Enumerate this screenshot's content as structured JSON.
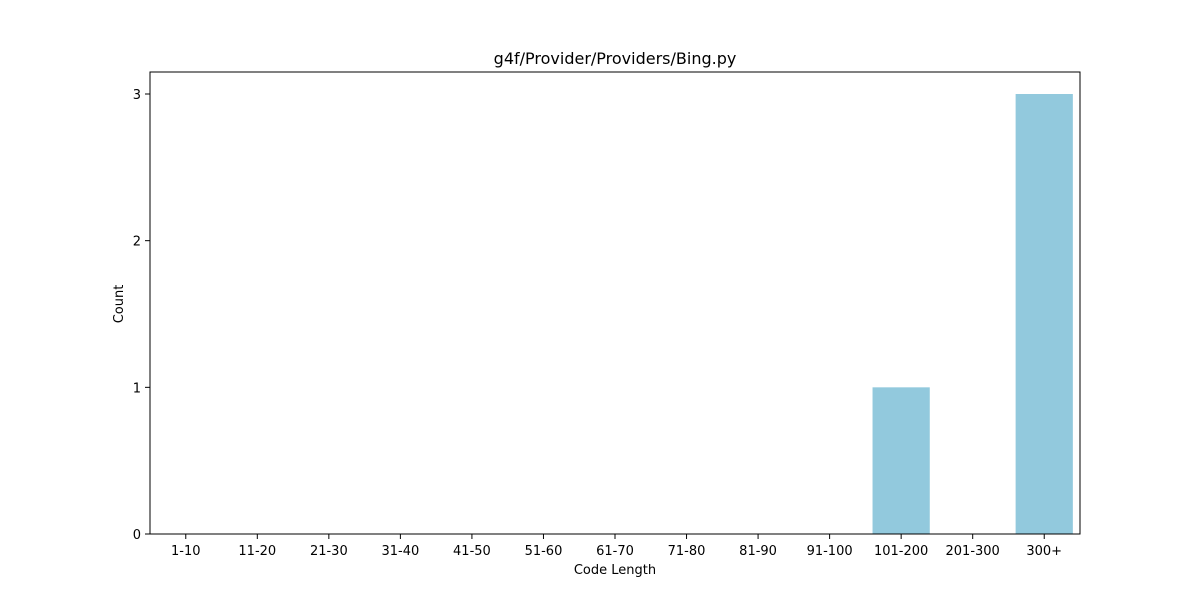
{
  "chart_data": {
    "type": "bar",
    "title": "g4f/Provider/Providers/Bing.py",
    "xlabel": "Code Length",
    "ylabel": "Count",
    "categories": [
      "1-10",
      "11-20",
      "21-30",
      "31-40",
      "41-50",
      "51-60",
      "61-70",
      "71-80",
      "81-90",
      "91-100",
      "101-200",
      "201-300",
      "300+"
    ],
    "values": [
      0,
      0,
      0,
      0,
      0,
      0,
      0,
      0,
      0,
      0,
      1,
      0,
      3
    ],
    "ylim": [
      0,
      3.15
    ],
    "yticks": [
      0,
      1,
      2,
      3
    ],
    "grid": false,
    "legend": "none",
    "bar_color": "#92c9dd"
  }
}
